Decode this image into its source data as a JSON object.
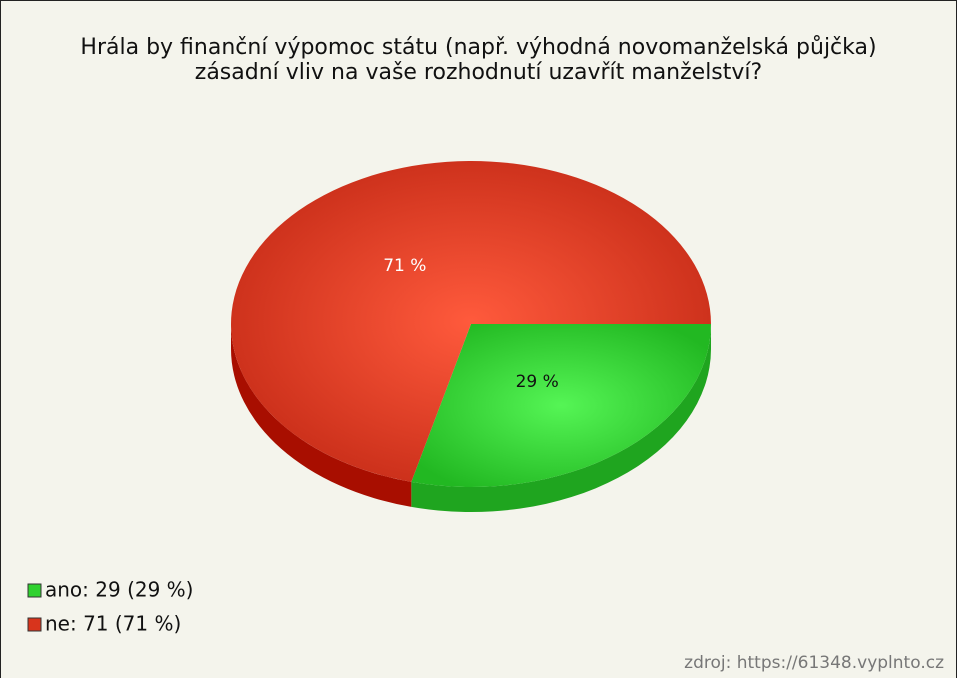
{
  "chart_data": {
    "type": "pie",
    "title": "Hrála by finanční výpomoc státu (např. výhodná novomanželská půjčka) zásadní vliv na vaše rozhodnutí uzavřít manželství?",
    "categories": [
      "ano",
      "ne"
    ],
    "values": [
      29,
      71
    ],
    "value_labels": [
      "29 %",
      "71 %"
    ],
    "colors": [
      "#2fd12f",
      "#d8341c"
    ],
    "legend_labels": [
      "ano: 29 (29 %)",
      "ne: 71 (71 %)"
    ],
    "legend": "bottom-left",
    "source": "zdroj: https://61348.vyplnto.cz"
  }
}
